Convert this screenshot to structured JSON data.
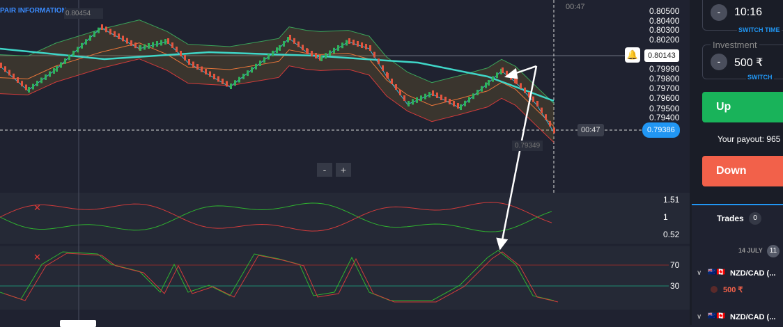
{
  "header": {
    "pair_information": "PAIR INFORMATION",
    "high_price": "0.80454",
    "time_label": "00:47"
  },
  "price_axis": {
    "ticks": [
      "0.80500",
      "0.80400",
      "0.80300",
      "0.80200",
      "0.79990",
      "0.79800",
      "0.79700",
      "0.79600",
      "0.79500",
      "0.79400"
    ],
    "alert_price": "0.80143",
    "current_price": "0.79386",
    "crosshair_time": "00:47",
    "low_price": "0.79349"
  },
  "zoom": {
    "out": "-",
    "in": "+"
  },
  "indicator1": {
    "ticks": [
      "1.51",
      "1",
      "0.52"
    ]
  },
  "indicator2": {
    "ticks": [
      "70",
      "30"
    ]
  },
  "sidebar": {
    "time": {
      "minus": "-",
      "value": "10:16",
      "switch": "SWITCH TIME"
    },
    "investment": {
      "label": "Investment",
      "minus": "-",
      "value": "500 ₹",
      "switch": "SWITCH"
    },
    "up": "Up",
    "payout": "Your payout: 965",
    "down": "Down",
    "trades": {
      "title": "Trades",
      "count": "0",
      "date": "14 JULY",
      "date_count": "11",
      "items": [
        {
          "pair": "NZD/CAD (...",
          "amount": "500 ₹"
        },
        {
          "pair": "NZD/CAD (..."
        }
      ]
    }
  }
}
